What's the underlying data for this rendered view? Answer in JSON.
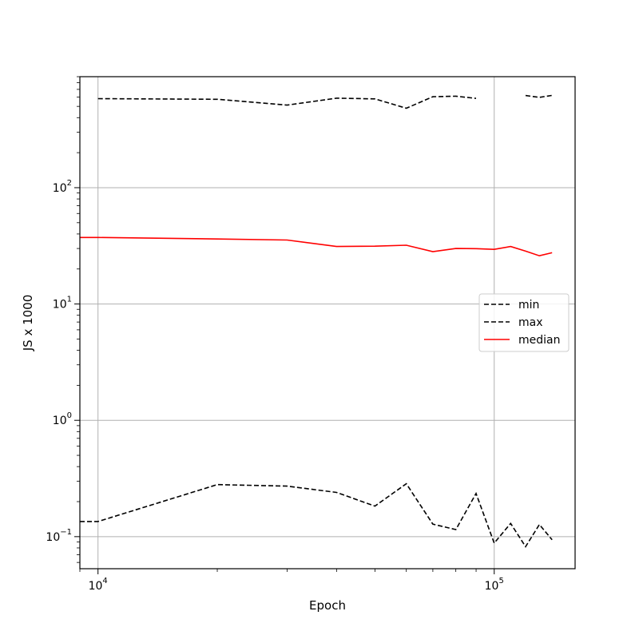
{
  "chart_data": {
    "type": "line",
    "title": "",
    "xlabel": "Epoch",
    "ylabel": "JS x 1000",
    "xscale": "log",
    "yscale": "log",
    "xlim": [
      9000,
      160000
    ],
    "ylim": [
      0.053,
      900
    ],
    "grid": true,
    "legend_position": "center-right",
    "x_ticks": [
      {
        "value": 10000,
        "base": "10",
        "exp": "4"
      },
      {
        "value": 100000,
        "base": "10",
        "exp": "5"
      }
    ],
    "y_ticks": [
      {
        "value": 0.1,
        "base": "10",
        "exp": "−1"
      },
      {
        "value": 1,
        "base": "10",
        "exp": "0"
      },
      {
        "value": 10,
        "base": "10",
        "exp": "1"
      },
      {
        "value": 100,
        "base": "10",
        "exp": "2"
      }
    ],
    "series": [
      {
        "name": "min",
        "color": "#000000",
        "dash": "dashed",
        "points": [
          [
            9000,
            0.135
          ],
          [
            10000,
            0.135
          ],
          [
            20000,
            0.28
          ],
          [
            30000,
            0.272
          ],
          [
            40000,
            0.24
          ],
          [
            50000,
            0.183
          ],
          [
            60000,
            0.285
          ],
          [
            70000,
            0.128
          ],
          [
            80000,
            0.115
          ],
          [
            90000,
            0.235
          ],
          [
            100000,
            0.088
          ],
          [
            110000,
            0.13
          ],
          [
            120000,
            0.082
          ],
          [
            130000,
            0.127
          ],
          [
            140000,
            0.094
          ]
        ]
      },
      {
        "name": "max",
        "color": "#000000",
        "dash": "dashed",
        "points": [
          [
            10000,
            583
          ],
          [
            20000,
            575
          ],
          [
            30000,
            513
          ],
          [
            40000,
            588
          ],
          [
            50000,
            580
          ],
          [
            60000,
            482
          ],
          [
            70000,
            605
          ],
          [
            80000,
            612
          ],
          [
            90000,
            585
          ],
          [
            null,
            null
          ],
          [
            120000,
            620
          ],
          [
            130000,
            598
          ],
          [
            140000,
            622
          ]
        ]
      },
      {
        "name": "median",
        "color": "#ff0000",
        "dash": "solid",
        "points": [
          [
            9000,
            37.3
          ],
          [
            10000,
            37.3
          ],
          [
            20000,
            36.2
          ],
          [
            30000,
            35.5
          ],
          [
            40000,
            31.2
          ],
          [
            50000,
            31.4
          ],
          [
            60000,
            32.0
          ],
          [
            70000,
            28.2
          ],
          [
            80000,
            30.0
          ],
          [
            90000,
            29.9
          ],
          [
            100000,
            29.5
          ],
          [
            110000,
            31.2
          ],
          [
            120000,
            28.5
          ],
          [
            130000,
            26.0
          ],
          [
            140000,
            27.6
          ]
        ]
      }
    ]
  }
}
